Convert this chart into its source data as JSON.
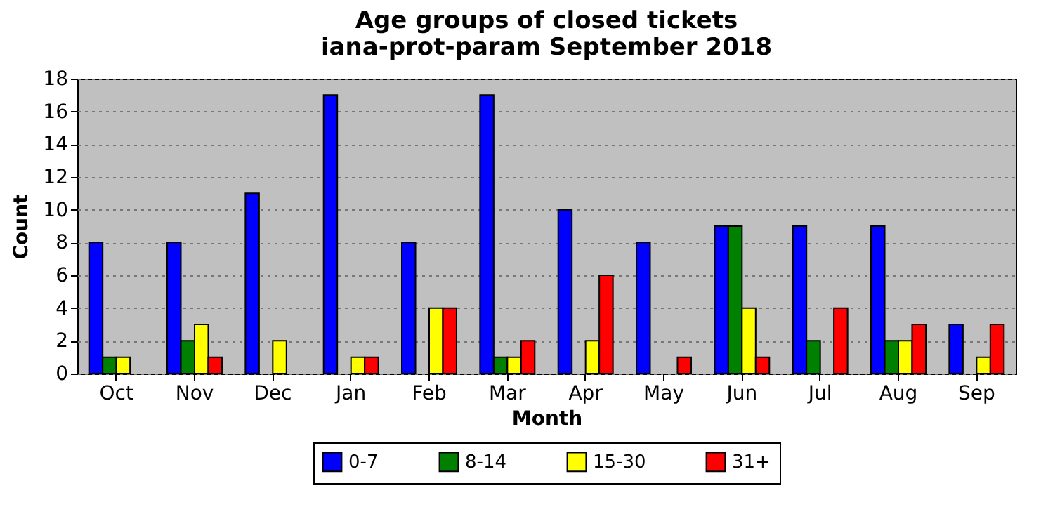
{
  "chart_data": {
    "type": "bar",
    "title": "Age groups of closed tickets",
    "subtitle": "iana-prot-param September 2018",
    "xlabel": "Month",
    "ylabel": "Count",
    "categories": [
      "Oct",
      "Nov",
      "Dec",
      "Jan",
      "Feb",
      "Mar",
      "Apr",
      "May",
      "Jun",
      "Jul",
      "Aug",
      "Sep"
    ],
    "series": [
      {
        "name": "0-7",
        "color": "#0000ff",
        "values": [
          8,
          8,
          11,
          17,
          8,
          17,
          10,
          8,
          9,
          9,
          9,
          3
        ]
      },
      {
        "name": "8-14",
        "color": "#008000",
        "values": [
          1,
          2,
          0,
          0,
          0,
          1,
          0,
          0,
          9,
          2,
          2,
          0
        ]
      },
      {
        "name": "15-30",
        "color": "#ffff00",
        "values": [
          1,
          3,
          2,
          1,
          4,
          1,
          2,
          0,
          4,
          0,
          2,
          1
        ]
      },
      {
        "name": "31+",
        "color": "#ff0000",
        "values": [
          0,
          1,
          0,
          1,
          4,
          2,
          6,
          1,
          1,
          4,
          3,
          3
        ]
      }
    ],
    "ylim": [
      0,
      18
    ],
    "yticks": [
      0,
      2,
      4,
      6,
      8,
      10,
      12,
      14,
      16,
      18
    ],
    "grid": "y",
    "legend": "bottom"
  }
}
